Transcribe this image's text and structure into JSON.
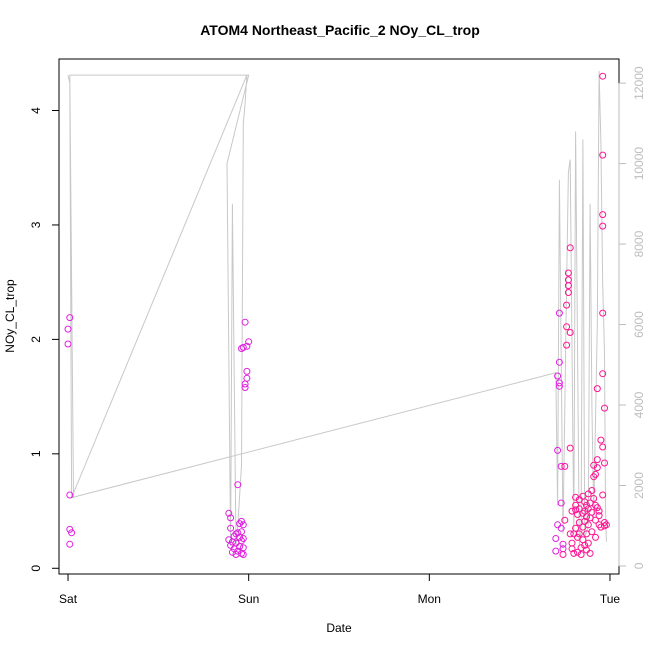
{
  "chart_data": {
    "type": "scatter",
    "title": "ATOM4 Northeast_Pacific_2 NOy_CL_trop",
    "xlabel": "Date",
    "ylabel": "NOy_CL_trop",
    "x_ticks": [
      "Sat",
      "Sun",
      "Mon",
      "Tue"
    ],
    "xlim_days": [
      -0.05,
      3.05
    ],
    "ylim": [
      -0.05,
      4.45
    ],
    "y_ticks": [
      0,
      1,
      2,
      3,
      4
    ],
    "y2lim": [
      -200,
      12600
    ],
    "y2_ticks": [
      0,
      2000,
      4000,
      6000,
      8000,
      10000,
      12000
    ],
    "grid": false,
    "colors": {
      "points": "#ff1493",
      "points_alt": "#e020e0",
      "secondary_line": "#c8c8c8",
      "axis": "#000000",
      "right_axis": "#bdbdbd"
    },
    "series": [
      {
        "axis": "left",
        "points": [
          {
            "x": 0.0,
            "y": 1.96,
            "c": "alt"
          },
          {
            "x": 0.0,
            "y": 2.09,
            "c": "alt"
          },
          {
            "x": 0.01,
            "y": 2.19,
            "c": "alt"
          },
          {
            "x": 0.01,
            "y": 0.64,
            "c": "alt"
          },
          {
            "x": 0.01,
            "y": 0.34,
            "c": "alt"
          },
          {
            "x": 0.02,
            "y": 0.31,
            "c": "alt"
          },
          {
            "x": 0.01,
            "y": 0.21,
            "c": "alt"
          },
          {
            "x": 0.89,
            "y": 0.48,
            "c": "alt"
          },
          {
            "x": 0.9,
            "y": 0.44,
            "c": "alt"
          },
          {
            "x": 0.9,
            "y": 0.35,
            "c": "alt"
          },
          {
            "x": 0.89,
            "y": 0.25,
            "c": "alt"
          },
          {
            "x": 0.9,
            "y": 0.2,
            "c": "alt"
          },
          {
            "x": 0.91,
            "y": 0.14,
            "c": "alt"
          },
          {
            "x": 0.92,
            "y": 0.28,
            "c": "alt"
          },
          {
            "x": 0.92,
            "y": 0.17,
            "c": "alt"
          },
          {
            "x": 0.93,
            "y": 0.3,
            "c": "alt"
          },
          {
            "x": 0.93,
            "y": 0.22,
            "c": "alt"
          },
          {
            "x": 0.94,
            "y": 0.73,
            "c": "alt"
          },
          {
            "x": 0.94,
            "y": 0.31,
            "c": "alt"
          },
          {
            "x": 0.94,
            "y": 0.15,
            "c": "alt"
          },
          {
            "x": 0.95,
            "y": 0.39,
            "c": "alt"
          },
          {
            "x": 0.95,
            "y": 0.27,
            "c": "alt"
          },
          {
            "x": 0.95,
            "y": 0.19,
            "c": "alt"
          },
          {
            "x": 0.96,
            "y": 0.41,
            "c": "alt"
          },
          {
            "x": 0.96,
            "y": 0.32,
            "c": "alt"
          },
          {
            "x": 0.96,
            "y": 0.24,
            "c": "alt"
          },
          {
            "x": 0.96,
            "y": 0.13,
            "c": "alt"
          },
          {
            "x": 0.97,
            "y": 0.38,
            "c": "alt"
          },
          {
            "x": 0.97,
            "y": 0.26,
            "c": "alt"
          },
          {
            "x": 0.97,
            "y": 0.18,
            "c": "alt"
          },
          {
            "x": 0.97,
            "y": 0.12,
            "c": "alt"
          },
          {
            "x": 0.93,
            "y": 0.12,
            "c": "alt"
          },
          {
            "x": 0.91,
            "y": 0.23,
            "c": "alt"
          },
          {
            "x": 0.96,
            "y": 1.92,
            "c": "alt"
          },
          {
            "x": 0.97,
            "y": 1.93,
            "c": "alt"
          },
          {
            "x": 0.98,
            "y": 2.15,
            "c": "alt"
          },
          {
            "x": 0.99,
            "y": 1.94,
            "c": "alt"
          },
          {
            "x": 1.0,
            "y": 1.98,
            "c": "alt"
          },
          {
            "x": 0.99,
            "y": 1.72,
            "c": "alt"
          },
          {
            "x": 0.99,
            "y": 1.66,
            "c": "alt"
          },
          {
            "x": 0.98,
            "y": 1.61,
            "c": "alt"
          },
          {
            "x": 0.98,
            "y": 1.58,
            "c": "alt"
          },
          {
            "x": 2.7,
            "y": 0.26,
            "c": "alt"
          },
          {
            "x": 2.7,
            "y": 0.15,
            "c": "alt"
          },
          {
            "x": 2.71,
            "y": 0.38,
            "c": "alt"
          },
          {
            "x": 2.71,
            "y": 1.03,
            "c": "alt"
          },
          {
            "x": 2.71,
            "y": 1.68,
            "c": "alt"
          },
          {
            "x": 2.72,
            "y": 1.8,
            "c": "alt"
          },
          {
            "x": 2.72,
            "y": 2.23,
            "c": "alt"
          },
          {
            "x": 2.72,
            "y": 1.59,
            "c": "alt"
          },
          {
            "x": 2.72,
            "y": 1.62,
            "c": "alt"
          },
          {
            "x": 2.73,
            "y": 0.89,
            "c": "alt"
          },
          {
            "x": 2.73,
            "y": 0.57,
            "c": "alt"
          },
          {
            "x": 2.73,
            "y": 0.35,
            "c": "alt"
          },
          {
            "x": 2.74,
            "y": 0.21,
            "c": "alt"
          },
          {
            "x": 2.74,
            "y": 0.17,
            "c": "alt"
          },
          {
            "x": 2.74,
            "y": 0.12
          },
          {
            "x": 2.75,
            "y": 0.89
          },
          {
            "x": 2.75,
            "y": 0.42
          },
          {
            "x": 2.76,
            "y": 1.95
          },
          {
            "x": 2.76,
            "y": 2.11
          },
          {
            "x": 2.76,
            "y": 2.3
          },
          {
            "x": 2.77,
            "y": 2.41
          },
          {
            "x": 2.77,
            "y": 2.47
          },
          {
            "x": 2.77,
            "y": 2.52
          },
          {
            "x": 2.77,
            "y": 2.58
          },
          {
            "x": 2.78,
            "y": 2.8
          },
          {
            "x": 2.78,
            "y": 2.06
          },
          {
            "x": 2.78,
            "y": 1.05
          },
          {
            "x": 2.78,
            "y": 0.3
          },
          {
            "x": 2.79,
            "y": 0.22
          },
          {
            "x": 2.79,
            "y": 0.17
          },
          {
            "x": 2.79,
            "y": 0.5
          },
          {
            "x": 2.8,
            "y": 0.3
          },
          {
            "x": 2.8,
            "y": 0.13
          },
          {
            "x": 2.81,
            "y": 0.62
          },
          {
            "x": 2.81,
            "y": 0.55
          },
          {
            "x": 2.81,
            "y": 0.51
          },
          {
            "x": 2.81,
            "y": 0.35
          },
          {
            "x": 2.82,
            "y": 0.47
          },
          {
            "x": 2.82,
            "y": 0.27
          },
          {
            "x": 2.82,
            "y": 0.14
          },
          {
            "x": 2.83,
            "y": 0.6
          },
          {
            "x": 2.83,
            "y": 0.52
          },
          {
            "x": 2.83,
            "y": 0.4
          },
          {
            "x": 2.83,
            "y": 0.3
          },
          {
            "x": 2.84,
            "y": 0.18
          },
          {
            "x": 2.84,
            "y": 0.12
          },
          {
            "x": 2.85,
            "y": 0.63
          },
          {
            "x": 2.85,
            "y": 0.48
          },
          {
            "x": 2.85,
            "y": 0.36
          },
          {
            "x": 2.85,
            "y": 0.25
          },
          {
            "x": 2.86,
            "y": 0.58
          },
          {
            "x": 2.86,
            "y": 0.5
          },
          {
            "x": 2.86,
            "y": 0.41
          },
          {
            "x": 2.86,
            "y": 0.2
          },
          {
            "x": 2.87,
            "y": 0.55
          },
          {
            "x": 2.87,
            "y": 0.45
          },
          {
            "x": 2.87,
            "y": 0.3
          },
          {
            "x": 2.87,
            "y": 0.16
          },
          {
            "x": 2.88,
            "y": 0.65
          },
          {
            "x": 2.88,
            "y": 0.52
          },
          {
            "x": 2.88,
            "y": 0.38
          },
          {
            "x": 2.88,
            "y": 0.22
          },
          {
            "x": 2.89,
            "y": 0.57
          },
          {
            "x": 2.89,
            "y": 0.44
          },
          {
            "x": 2.89,
            "y": 0.13
          },
          {
            "x": 2.9,
            "y": 0.68
          },
          {
            "x": 2.9,
            "y": 0.49
          },
          {
            "x": 2.9,
            "y": 0.32
          },
          {
            "x": 2.91,
            "y": 0.8
          },
          {
            "x": 2.91,
            "y": 0.9
          },
          {
            "x": 2.91,
            "y": 0.61
          },
          {
            "x": 2.92,
            "y": 0.82
          },
          {
            "x": 2.92,
            "y": 0.55
          },
          {
            "x": 2.92,
            "y": 0.42
          },
          {
            "x": 2.92,
            "y": 0.27
          },
          {
            "x": 2.93,
            "y": 0.88
          },
          {
            "x": 2.93,
            "y": 0.95
          },
          {
            "x": 2.93,
            "y": 0.53
          },
          {
            "x": 2.93,
            "y": 1.57
          },
          {
            "x": 2.94,
            "y": 0.5
          },
          {
            "x": 2.94,
            "y": 0.46
          },
          {
            "x": 2.94,
            "y": 0.38
          },
          {
            "x": 2.95,
            "y": 1.12
          },
          {
            "x": 2.95,
            "y": 0.36
          },
          {
            "x": 2.96,
            "y": 3.09
          },
          {
            "x": 2.96,
            "y": 2.99
          },
          {
            "x": 2.96,
            "y": 2.23
          },
          {
            "x": 2.96,
            "y": 1.7
          },
          {
            "x": 2.96,
            "y": 1.06
          },
          {
            "x": 2.96,
            "y": 0.64
          },
          {
            "x": 2.96,
            "y": 3.61
          },
          {
            "x": 2.96,
            "y": 4.3
          },
          {
            "x": 2.97,
            "y": 1.4
          },
          {
            "x": 2.97,
            "y": 0.92
          },
          {
            "x": 2.97,
            "y": 0.4
          },
          {
            "x": 2.97,
            "y": 0.37
          },
          {
            "x": 2.98,
            "y": 0.38
          }
        ]
      },
      {
        "axis": "right",
        "line": [
          [
            0.0,
            12200
          ],
          [
            0.0,
            12200
          ],
          [
            0.01,
            12000
          ],
          [
            0.02,
            1700
          ],
          [
            0.03,
            1700
          ],
          [
            0.01,
            12200
          ],
          [
            1.0,
            12200
          ],
          [
            0.88,
            10000
          ],
          [
            0.9,
            500
          ],
          [
            0.91,
            9000
          ],
          [
            0.93,
            500
          ],
          [
            0.94,
            1000
          ],
          [
            0.96,
            2500
          ],
          [
            0.97,
            11000
          ],
          [
            0.98,
            11500
          ],
          [
            0.99,
            12200
          ],
          [
            0.02,
            1700
          ],
          [
            2.7,
            4800
          ],
          [
            2.71,
            1500
          ],
          [
            2.72,
            9600
          ],
          [
            2.74,
            800
          ],
          [
            2.76,
            7000
          ],
          [
            2.77,
            9800
          ],
          [
            2.78,
            10100
          ],
          [
            2.8,
            800
          ],
          [
            2.81,
            10800
          ],
          [
            2.83,
            500
          ],
          [
            2.84,
            900
          ],
          [
            2.85,
            10600
          ],
          [
            2.86,
            700
          ],
          [
            2.88,
            1000
          ],
          [
            2.89,
            9000
          ],
          [
            2.9,
            4000
          ],
          [
            2.91,
            1200
          ],
          [
            2.93,
            6000
          ],
          [
            2.94,
            12300
          ],
          [
            2.95,
            10500
          ],
          [
            2.96,
            7000
          ],
          [
            2.97,
            5300
          ],
          [
            2.975,
            1400
          ],
          [
            2.98,
            600
          ]
        ]
      }
    ]
  }
}
